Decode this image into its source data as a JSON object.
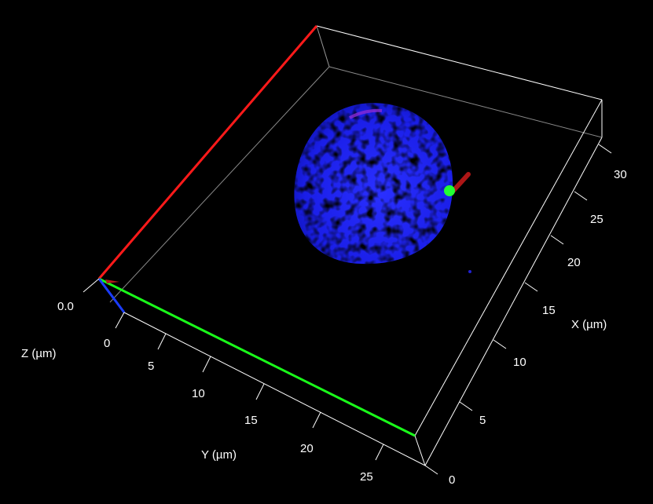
{
  "viewer": {
    "background": "#000000",
    "frame_border": "#ffffff"
  },
  "axes": {
    "x": {
      "label": "X (µm)",
      "ticks": [
        "0",
        "5",
        "10",
        "15",
        "20",
        "25",
        "30"
      ],
      "range": [
        0,
        32
      ],
      "highlight_color": "#ff1a1a"
    },
    "y": {
      "label": "Y (µm)",
      "ticks": [
        "0",
        "5",
        "10",
        "15",
        "20",
        "25"
      ],
      "range": [
        0,
        29
      ],
      "highlight_color": "#1aff1a"
    },
    "z": {
      "label": "Z (µm)",
      "ticks": [
        "0.0"
      ],
      "highlight_color": "#1a3cff"
    }
  },
  "specimen": {
    "nucleus_color": "#1e22ff",
    "green_spot_color": "#22ff33",
    "red_signal_color": "#cc1a1a"
  }
}
